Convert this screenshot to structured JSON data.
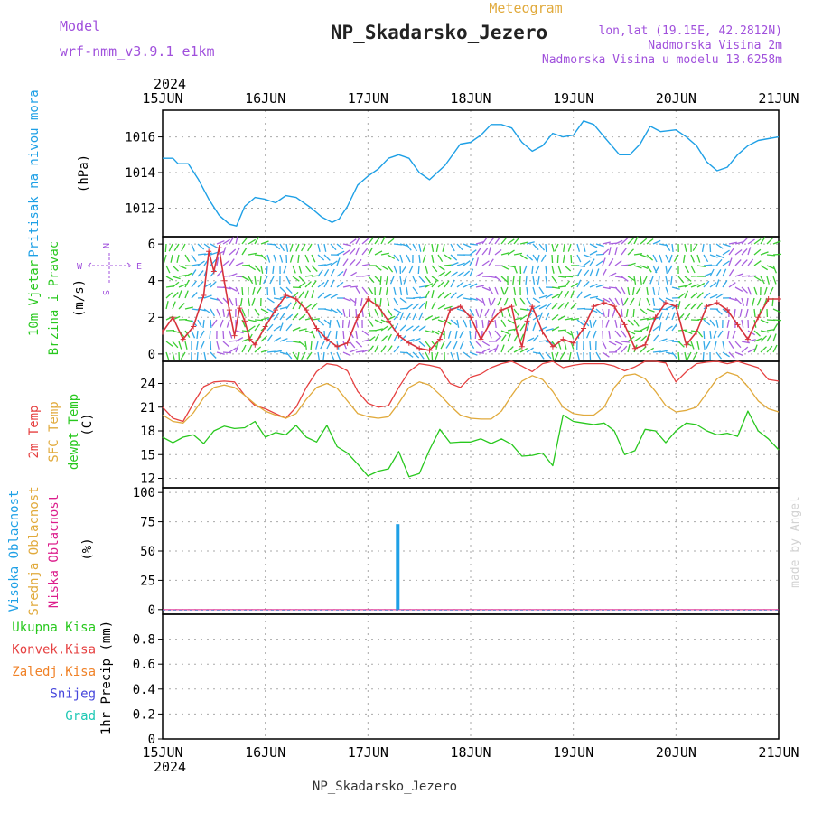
{
  "header": {
    "model_label": "Model",
    "model_name": "wrf-nmm_v3.9.1  e1km",
    "product": "Meteogram",
    "station": "NP_Skadarsko_Jezero",
    "coords": "lon,lat (19.15E, 42.2812N)",
    "altitude": "Nadmorska Visina 2m",
    "model_altitude": "Nadmorska Visina u modelu 13.6258m",
    "footer_station": "NP_Skadarsko_Jezero",
    "watermark": "made by Angel"
  },
  "colors": {
    "pressure": "#1ea0e6",
    "wind_speed": "#d7323c",
    "wind_dir": "#a050dc",
    "temp_2m": "#e64141",
    "temp_sfc": "#e1aa3c",
    "dewpoint": "#28c81e",
    "high_cloud": "#1ea0e6",
    "mid_cloud": "#e1aa3c",
    "low_cloud": "#dc1e8c",
    "total_precip": "#28c81e",
    "conv_precip": "#e64141",
    "frozen_precip": "#f08228",
    "snow": "#4646dc",
    "hail": "#1ec8b4",
    "gridline": "#aaaaaa"
  },
  "chart_data": [
    {
      "type": "line",
      "panel": "pressure",
      "ylabel_lines": [
        "Pritisak na nivou mora"
      ],
      "unit": "(hPa)",
      "ylim": [
        1010.4,
        1017.5
      ],
      "yticks": [
        1012,
        1014,
        1016
      ],
      "x_days": [
        0,
        0.1,
        0.15,
        0.25,
        0.35,
        0.45,
        0.55,
        0.65,
        0.72,
        0.8,
        0.9,
        1.0,
        1.1,
        1.2,
        1.3,
        1.45,
        1.55,
        1.65,
        1.72,
        1.8,
        1.9,
        2.0,
        2.1,
        2.2,
        2.3,
        2.4,
        2.5,
        2.6,
        2.75,
        2.9,
        3.0,
        3.1,
        3.2,
        3.3,
        3.4,
        3.5,
        3.6,
        3.7,
        3.8,
        3.9,
        4.0,
        4.1,
        4.2,
        4.3,
        4.45,
        4.55,
        4.65,
        4.75,
        4.85,
        5.0,
        5.1,
        5.2,
        5.3,
        5.4,
        5.5,
        5.6,
        5.7,
        5.8,
        5.9,
        6.0
      ],
      "values": [
        1014.8,
        1014.8,
        1014.5,
        1014.5,
        1013.6,
        1012.5,
        1011.6,
        1011.1,
        1011.0,
        1012.1,
        1012.6,
        1012.5,
        1012.3,
        1012.7,
        1012.6,
        1012.0,
        1011.5,
        1011.2,
        1011.4,
        1012.1,
        1013.3,
        1013.8,
        1014.2,
        1014.8,
        1015.0,
        1014.8,
        1014.0,
        1013.6,
        1014.4,
        1015.6,
        1015.7,
        1016.1,
        1016.7,
        1016.7,
        1016.5,
        1015.7,
        1015.2,
        1015.5,
        1016.2,
        1016.0,
        1016.1,
        1016.9,
        1016.7,
        1016.0,
        1015.0,
        1015.0,
        1015.6,
        1016.6,
        1016.3,
        1016.4,
        1016.0,
        1015.5,
        1014.6,
        1014.1,
        1014.3,
        1015.0,
        1015.5,
        1015.8,
        1015.9,
        1016.0
      ]
    },
    {
      "type": "line",
      "panel": "wind",
      "ylabel_lines": [
        "10m Vjetar",
        "Brzina i Pravac"
      ],
      "unit": "(m/s)",
      "compass": {
        "north": "N",
        "west": "W",
        "east": "E",
        "south": "S"
      },
      "ylim": [
        -0.4,
        6.4
      ],
      "yticks": [
        0,
        2,
        4,
        6
      ],
      "x_days": [
        0,
        0.1,
        0.2,
        0.3,
        0.4,
        0.45,
        0.5,
        0.55,
        0.6,
        0.65,
        0.7,
        0.75,
        0.8,
        0.85,
        0.9,
        1.0,
        1.1,
        1.2,
        1.3,
        1.4,
        1.5,
        1.6,
        1.7,
        1.8,
        1.9,
        2.0,
        2.1,
        2.2,
        2.3,
        2.4,
        2.5,
        2.6,
        2.7,
        2.8,
        2.9,
        3.0,
        3.1,
        3.2,
        3.3,
        3.4,
        3.45,
        3.5,
        3.55,
        3.6,
        3.7,
        3.8,
        3.9,
        4.0,
        4.1,
        4.2,
        4.3,
        4.4,
        4.5,
        4.6,
        4.7,
        4.8,
        4.9,
        5.0,
        5.1,
        5.2,
        5.3,
        5.4,
        5.5,
        5.6,
        5.7,
        5.8,
        5.9,
        6.0
      ],
      "values": [
        1.2,
        2.0,
        0.8,
        1.5,
        3.2,
        5.6,
        4.5,
        5.8,
        4.0,
        2.4,
        1.0,
        2.5,
        1.8,
        0.8,
        0.5,
        1.5,
        2.4,
        3.2,
        3.0,
        2.4,
        1.4,
        0.8,
        0.4,
        0.6,
        2.0,
        3.0,
        2.6,
        1.8,
        1.0,
        0.6,
        0.3,
        0.2,
        0.8,
        2.4,
        2.6,
        2.0,
        0.8,
        1.8,
        2.4,
        2.6,
        1.2,
        0.4,
        1.8,
        2.6,
        1.2,
        0.4,
        0.8,
        0.6,
        1.4,
        2.6,
        2.8,
        2.6,
        1.6,
        0.3,
        0.5,
        2.0,
        2.8,
        2.6,
        0.5,
        1.2,
        2.6,
        2.8,
        2.4,
        1.6,
        0.8,
        2.0,
        3.0,
        3.0
      ]
    },
    {
      "type": "line",
      "panel": "temperature",
      "ylabel_lines": [
        "2m Temp",
        "SFC Temp",
        "dewpt Temp"
      ],
      "unit": "(C)",
      "ylim": [
        10.8,
        26.8
      ],
      "yticks": [
        12,
        15,
        18,
        21,
        24
      ],
      "x_days": [
        0,
        0.1,
        0.2,
        0.3,
        0.4,
        0.5,
        0.6,
        0.7,
        0.8,
        0.9,
        1.0,
        1.1,
        1.2,
        1.3,
        1.4,
        1.5,
        1.6,
        1.7,
        1.8,
        1.9,
        2.0,
        2.1,
        2.2,
        2.3,
        2.4,
        2.5,
        2.6,
        2.7,
        2.8,
        2.9,
        3.0,
        3.1,
        3.2,
        3.3,
        3.4,
        3.5,
        3.6,
        3.7,
        3.8,
        3.9,
        4.0,
        4.1,
        4.2,
        4.3,
        4.4,
        4.5,
        4.6,
        4.7,
        4.8,
        4.9,
        5.0,
        5.1,
        5.2,
        5.3,
        5.4,
        5.5,
        5.6,
        5.7,
        5.8,
        5.9,
        6.0
      ],
      "series": [
        {
          "name": "2m Temp",
          "color_key": "temp_2m",
          "values": [
            21.0,
            19.6,
            19.2,
            21.5,
            23.6,
            24.2,
            24.3,
            24.2,
            22.5,
            21.2,
            20.8,
            20.2,
            19.6,
            21.0,
            23.5,
            25.5,
            26.5,
            26.3,
            25.6,
            23.0,
            21.5,
            21.0,
            21.2,
            23.5,
            25.5,
            26.5,
            26.3,
            26.0,
            24.0,
            23.5,
            24.8,
            25.2,
            26.0,
            26.5,
            26.8,
            26.2,
            25.5,
            26.5,
            26.8,
            26.0,
            26.3,
            26.5,
            26.5,
            26.5,
            26.2,
            25.6,
            26.1,
            26.8,
            26.8,
            26.6,
            24.2,
            25.5,
            26.5,
            26.7,
            26.8,
            26.5,
            26.8,
            26.4,
            26.0,
            24.5,
            24.3
          ]
        },
        {
          "name": "SFC Temp",
          "color_key": "temp_sfc",
          "values": [
            20.0,
            19.2,
            19.0,
            20.3,
            22.2,
            23.5,
            23.8,
            23.5,
            22.5,
            21.4,
            20.5,
            20.0,
            19.6,
            20.2,
            22.0,
            23.5,
            24.0,
            23.4,
            21.8,
            20.2,
            19.8,
            19.6,
            19.8,
            21.5,
            23.5,
            24.2,
            23.8,
            22.6,
            21.2,
            20.0,
            19.6,
            19.5,
            19.5,
            20.5,
            22.5,
            24.3,
            25.0,
            24.5,
            23.0,
            21.0,
            20.2,
            20.0,
            20.0,
            21.0,
            23.5,
            25.0,
            25.2,
            24.6,
            23.0,
            21.2,
            20.4,
            20.6,
            21.0,
            22.8,
            24.6,
            25.4,
            25.0,
            23.6,
            21.8,
            20.8,
            20.4
          ]
        },
        {
          "name": "dewpt Temp",
          "color_key": "dewpoint",
          "values": [
            17.2,
            16.5,
            17.2,
            17.5,
            16.4,
            18.0,
            18.6,
            18.3,
            18.4,
            19.2,
            17.2,
            17.8,
            17.5,
            18.7,
            17.2,
            16.6,
            18.7,
            16.0,
            15.2,
            13.8,
            12.3,
            12.9,
            13.2,
            15.4,
            12.2,
            12.6,
            15.6,
            18.2,
            16.5,
            16.6,
            16.6,
            17.0,
            16.4,
            17.0,
            16.3,
            14.8,
            14.9,
            15.2,
            13.6,
            20.0,
            19.2,
            19.0,
            18.8,
            19.0,
            18.0,
            15.0,
            15.5,
            18.2,
            18.0,
            16.5,
            18.0,
            19.0,
            18.8,
            18.0,
            17.5,
            17.7,
            17.3,
            20.5,
            18.0,
            17.0,
            15.6
          ]
        }
      ]
    },
    {
      "type": "bar",
      "panel": "clouds",
      "ylabel_lines": [
        "Visoka Oblacnost",
        "Srednja Oblacnost",
        "Niska  Oblacnost"
      ],
      "unit": "(%)",
      "ylim": [
        -4,
        104
      ],
      "yticks": [
        0,
        25,
        50,
        75,
        100
      ],
      "series": [
        {
          "name": "Visoka Oblacnost",
          "color_key": "high_cloud",
          "bars": [
            {
              "x_day": 2.29,
              "value": 73
            }
          ]
        },
        {
          "name": "Srednja Oblacnost",
          "color_key": "mid_cloud",
          "bars": []
        },
        {
          "name": "Niska  Oblacnost",
          "color_key": "low_cloud",
          "bars": []
        }
      ]
    },
    {
      "type": "bar",
      "panel": "precipitation",
      "legend": [
        "Ukupna  Kisa",
        "Konvek.Kisa",
        "Zaledj.Kisa",
        "Snijeg",
        "Grad"
      ],
      "legend_color_keys": [
        "total_precip",
        "conv_precip",
        "frozen_precip",
        "snow",
        "hail"
      ],
      "ylabel": "1hr Precip (mm)",
      "ylim": [
        0,
        1.0
      ],
      "yticks": [
        "0",
        "0.2",
        "0.4",
        "0.6",
        "0.8"
      ],
      "values": []
    }
  ],
  "x_axis": {
    "year": "2024",
    "day_labels": [
      "15JUN",
      "16JUN",
      "17JUN",
      "18JUN",
      "19JUN",
      "20JUN",
      "21JUN"
    ]
  }
}
